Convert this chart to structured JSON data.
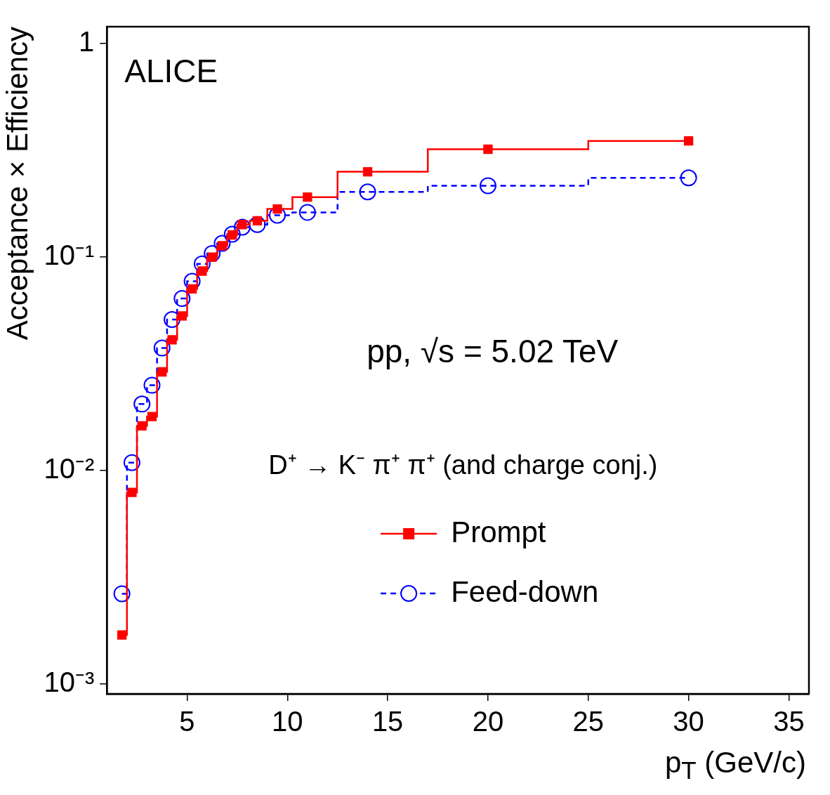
{
  "chart_data": {
    "type": "step",
    "xlabel": "p$_{T}$ (GeV/c)",
    "ylabel": "Acceptance × Efficiency",
    "annotations": [
      "ALICE",
      "pp, √s = 5.02 TeV",
      "D⁺ → K⁻ π⁺ π⁺ (and charge conj.)"
    ],
    "x": [
      1.75,
      2.25,
      2.75,
      3.25,
      3.75,
      4.25,
      4.75,
      5.25,
      5.75,
      6.25,
      6.75,
      7.25,
      7.75,
      8.5,
      9.5,
      11,
      14,
      20,
      30
    ],
    "series": [
      {
        "name": "Prompt",
        "color": "#ff0000",
        "marker": "square",
        "line_style": "solid",
        "values": [
          0.0017,
          0.0079,
          0.0162,
          0.0179,
          0.029,
          0.041,
          0.053,
          0.071,
          0.086,
          0.1,
          0.113,
          0.127,
          0.142,
          0.148,
          0.168,
          0.191,
          0.251,
          0.32,
          0.35
        ]
      },
      {
        "name": "Feed-down",
        "color": "#0000ff",
        "marker": "circle",
        "line_style": "dashed",
        "values": [
          0.00265,
          0.0109,
          0.0205,
          0.0251,
          0.0375,
          0.051,
          0.064,
          0.077,
          0.093,
          0.104,
          0.116,
          0.128,
          0.138,
          0.142,
          0.157,
          0.162,
          0.202,
          0.216,
          0.235
        ]
      }
    ],
    "xlim": [
      1,
      36
    ],
    "xticks": [
      5,
      10,
      15,
      20,
      25,
      30,
      35
    ],
    "ylim": [
      0.0009,
      1.2
    ],
    "yticks": [
      {
        "value": 0.001,
        "label": "10⁻³"
      },
      {
        "value": 0.01,
        "label": "10⁻²"
      },
      {
        "value": 0.1,
        "label": "10⁻¹"
      },
      1
    ],
    "log": "y",
    "legend": "bottom",
    "grid": false
  }
}
